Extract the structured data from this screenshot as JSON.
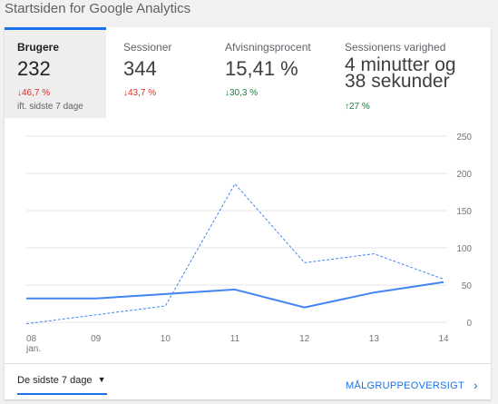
{
  "page": {
    "title": "Startsiden for Google Analytics"
  },
  "metrics": [
    {
      "label": "Brugere",
      "value": "232",
      "delta": "46,7 %",
      "direction": "down",
      "compare": "ift. sidste 7 dage"
    },
    {
      "label": "Sessioner",
      "value": "344",
      "delta": "43,7 %",
      "direction": "down"
    },
    {
      "label": "Afvisningsprocent",
      "value": "15,41 %",
      "delta": "30,3 %",
      "direction": "down"
    },
    {
      "label": "Sessionens varighed",
      "value": "4 minutter og 38 sekunder",
      "delta": "27 %",
      "direction": "up"
    }
  ],
  "arrows": {
    "down": "↓",
    "up": "↑"
  },
  "chart_data": {
    "type": "line",
    "categories": [
      "08 jan.",
      "09",
      "10",
      "11",
      "12",
      "13",
      "14"
    ],
    "series": [
      {
        "values": [
          32,
          32,
          38,
          44,
          20,
          40,
          54
        ],
        "style": "solid",
        "color": "#4285f4"
      },
      {
        "values": [
          -2,
          10,
          22,
          186,
          80,
          92,
          58
        ],
        "style": "dashed",
        "color": "#4285f4"
      }
    ],
    "ylim": [
      0,
      250
    ],
    "yticks": [
      "250",
      "200",
      "150",
      "100",
      "50",
      "0"
    ],
    "ytick_values": [
      250,
      200,
      150,
      100,
      50,
      0
    ],
    "grid": true
  },
  "footer": {
    "range_label": "De sidste 7 dage",
    "link_label": "MÅLGRUPPEOVERSIGT"
  }
}
